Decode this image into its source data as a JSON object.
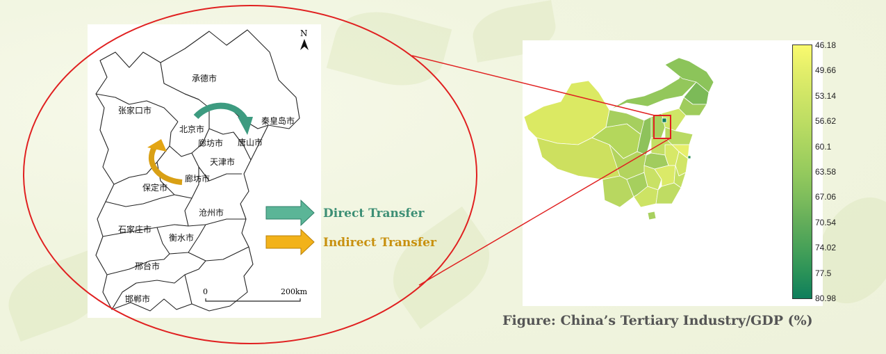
{
  "colors": {
    "direct": "#3d9b80",
    "indirect": "#e3a514",
    "highlight": "#e02020",
    "caption": "#555555"
  },
  "left_map": {
    "north_label": "N",
    "cities": [
      {
        "id": "chengde",
        "label": "承德市"
      },
      {
        "id": "zhangjiakou",
        "label": "张家口市"
      },
      {
        "id": "beijing",
        "label": "北京市"
      },
      {
        "id": "qinhuangdao",
        "label": "秦皇岛市"
      },
      {
        "id": "langfang-north",
        "label": "廊坊市"
      },
      {
        "id": "tangshan",
        "label": "唐山市"
      },
      {
        "id": "tianjin",
        "label": "天津市"
      },
      {
        "id": "baoding",
        "label": "保定市"
      },
      {
        "id": "langfang",
        "label": "廊坊市"
      },
      {
        "id": "cangzhou",
        "label": "沧州市"
      },
      {
        "id": "shijiazhuang",
        "label": "石家庄市"
      },
      {
        "id": "hengshui",
        "label": "衡水市"
      },
      {
        "id": "xingtai",
        "label": "邢台市"
      },
      {
        "id": "handan",
        "label": "邯郸市"
      }
    ],
    "scale": {
      "start": "0",
      "end": "200km"
    }
  },
  "legend": {
    "direct": "Direct Transfer",
    "indirect": "Indirect Transfer"
  },
  "colorbar": {
    "ticks": [
      "46.18",
      "49.66",
      "53.14",
      "56.62",
      "60.1",
      "63.58",
      "67.06",
      "70.54",
      "74.02",
      "77.5",
      "80.98"
    ],
    "colors": [
      "#fafa6e",
      "#e3ee6a",
      "#cfe566",
      "#bddd63",
      "#a9d460",
      "#95ca5d",
      "#7ebd5c",
      "#63ad5a",
      "#47a158",
      "#2a9258",
      "#0f7e5c"
    ]
  },
  "caption": "Figure: China’s Tertiary Industry/GDP (%)"
}
